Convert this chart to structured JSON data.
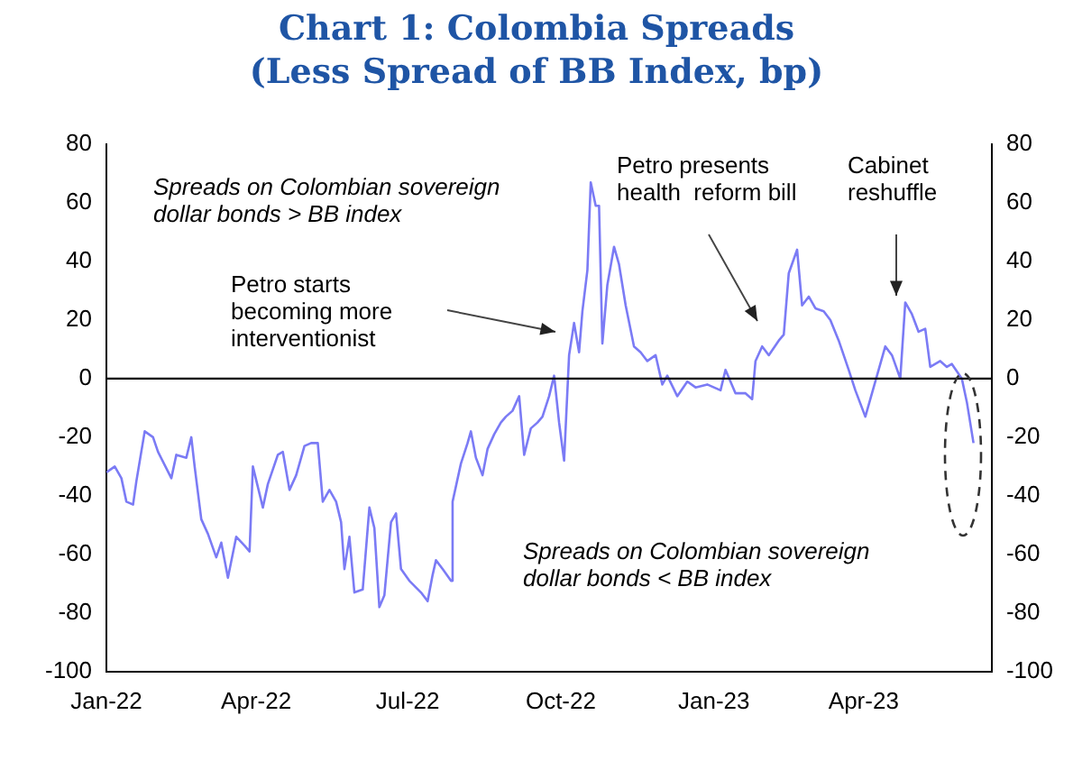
{
  "chart_data": {
    "type": "line",
    "title": "Chart 1: Colombia Spreads",
    "subtitle": "(Less Spread of BB Index, bp)",
    "x": [
      "2022-01-01",
      "2022-01-06",
      "2022-01-10",
      "2022-01-13",
      "2022-01-17",
      "2022-01-19",
      "2022-01-24",
      "2022-01-29",
      "2022-02-01",
      "2022-02-09",
      "2022-02-12",
      "2022-02-18",
      "2022-02-21",
      "2022-02-23",
      "2022-02-27",
      "2022-03-03",
      "2022-03-08",
      "2022-03-11",
      "2022-03-15",
      "2022-03-20",
      "2022-03-25",
      "2022-03-28",
      "2022-03-30",
      "2022-04-05",
      "2022-04-08",
      "2022-04-14",
      "2022-04-17",
      "2022-04-21",
      "2022-04-25",
      "2022-04-30",
      "2022-05-04",
      "2022-05-08",
      "2022-05-11",
      "2022-05-15",
      "2022-05-19",
      "2022-05-22",
      "2022-05-24",
      "2022-05-27",
      "2022-05-30",
      "2022-06-04",
      "2022-06-08",
      "2022-06-11",
      "2022-06-14",
      "2022-06-17",
      "2022-06-21",
      "2022-06-24",
      "2022-06-27",
      "2022-07-02",
      "2022-07-09",
      "2022-07-13",
      "2022-07-16",
      "2022-07-18",
      "2022-07-22",
      "2022-07-27",
      "2022-07-28",
      "2022-08-02",
      "2022-08-06",
      "2022-08-08",
      "2022-08-11",
      "2022-08-15",
      "2022-08-18",
      "2022-08-22",
      "2022-08-26",
      "2022-08-29",
      "2022-09-02",
      "2022-09-06",
      "2022-09-09",
      "2022-09-13",
      "2022-09-17",
      "2022-09-20",
      "2022-09-24",
      "2022-09-27",
      "2022-09-30",
      "2022-10-03",
      "2022-10-06",
      "2022-10-09",
      "2022-10-12",
      "2022-10-14",
      "2022-10-17",
      "2022-10-19",
      "2022-10-22",
      "2022-10-24",
      "2022-10-26",
      "2022-10-29",
      "2022-11-02",
      "2022-11-05",
      "2022-11-09",
      "2022-11-14",
      "2022-11-18",
      "2022-11-22",
      "2022-11-27",
      "2022-12-01",
      "2022-12-04",
      "2022-12-10",
      "2022-12-16",
      "2022-12-21",
      "2022-12-28",
      "2023-01-05",
      "2023-01-08",
      "2023-01-14",
      "2023-01-20",
      "2023-01-24",
      "2023-01-26",
      "2023-01-30",
      "2023-02-03",
      "2023-02-09",
      "2023-02-12",
      "2023-02-15",
      "2023-02-20",
      "2023-02-23",
      "2023-02-27",
      "2023-03-03",
      "2023-03-08",
      "2023-03-12",
      "2023-03-17",
      "2023-03-23",
      "2023-03-27",
      "2023-04-02",
      "2023-04-07",
      "2023-04-14",
      "2023-04-18",
      "2023-04-23",
      "2023-04-26",
      "2023-04-30",
      "2023-05-04",
      "2023-05-08",
      "2023-05-11",
      "2023-05-17",
      "2023-05-21",
      "2023-05-24",
      "2023-05-30",
      "2023-06-02",
      "2023-06-06"
    ],
    "series": [
      {
        "color": "#7b7bf5",
        "values": [
          -32,
          -30,
          -34,
          -42,
          -43,
          -35,
          -18,
          -20,
          -25,
          -34,
          -26,
          -27,
          -20,
          -30,
          -48,
          -53,
          -61,
          -56,
          -68,
          -54,
          -57,
          -59,
          -30,
          -44,
          -36,
          -26,
          -25,
          -38,
          -33,
          -23,
          -22,
          -22,
          -42,
          -38,
          -42,
          -49,
          -65,
          -54,
          -73,
          -72,
          -44,
          -51,
          -78,
          -74,
          -49,
          -46,
          -65,
          -69,
          -73,
          -76,
          -67,
          -62,
          -65,
          -69,
          -42,
          -29,
          -22,
          -18,
          -27,
          -33,
          -24,
          -19,
          -15,
          -13,
          -11,
          -6,
          -26,
          -17,
          -15,
          -13,
          -6,
          1,
          -15,
          -28,
          8,
          19,
          9,
          23,
          37,
          67,
          59,
          59,
          12,
          32,
          45,
          39,
          25,
          11,
          9,
          6,
          8,
          -2,
          1,
          -6,
          -1,
          -3,
          -2,
          -4,
          3,
          -5,
          -5,
          -7,
          6,
          11,
          8,
          13,
          15,
          36,
          44,
          25,
          28,
          24,
          23,
          20,
          13,
          3,
          -4,
          -13,
          -3,
          11,
          8,
          0,
          26,
          22,
          16,
          17,
          4,
          6,
          4,
          5,
          0,
          -8,
          -22
        ]
      }
    ],
    "xlim": [
      "2022-01-01",
      "2023-06-17"
    ],
    "xticks": [
      {
        "value": "2022-01-01",
        "label": "Jan-22"
      },
      {
        "value": "2022-04-01",
        "label": "Apr-22"
      },
      {
        "value": "2022-07-01",
        "label": "Jul-22"
      },
      {
        "value": "2022-10-01",
        "label": "Oct-22"
      },
      {
        "value": "2023-01-01",
        "label": "Jan-23"
      },
      {
        "value": "2023-04-01",
        "label": "Apr-23"
      }
    ],
    "ylim": [
      -100,
      80
    ],
    "yticks": [
      -100,
      -80,
      -60,
      -40,
      -20,
      0,
      20,
      40,
      60,
      80
    ],
    "y2lim": [
      -100,
      80
    ],
    "y2ticks": [
      -100,
      -80,
      -60,
      -40,
      -20,
      0,
      20,
      40,
      60,
      80
    ],
    "ref_lines": [
      {
        "axis": "y",
        "value": 0,
        "color": "#000000"
      }
    ],
    "annotations": [
      "Spreads on Colombian sovereign\ndollar bonds > BB index",
      "Petro starts\nbecoming more\ninterventionist",
      "Petro presents\nhealth  reform bill",
      "Cabinet\nreshuffle",
      "Spreads on Colombian sovereign\ndollar bonds < BB index"
    ],
    "grid": false,
    "legend": false,
    "marker": "none",
    "line_style": "solid"
  }
}
